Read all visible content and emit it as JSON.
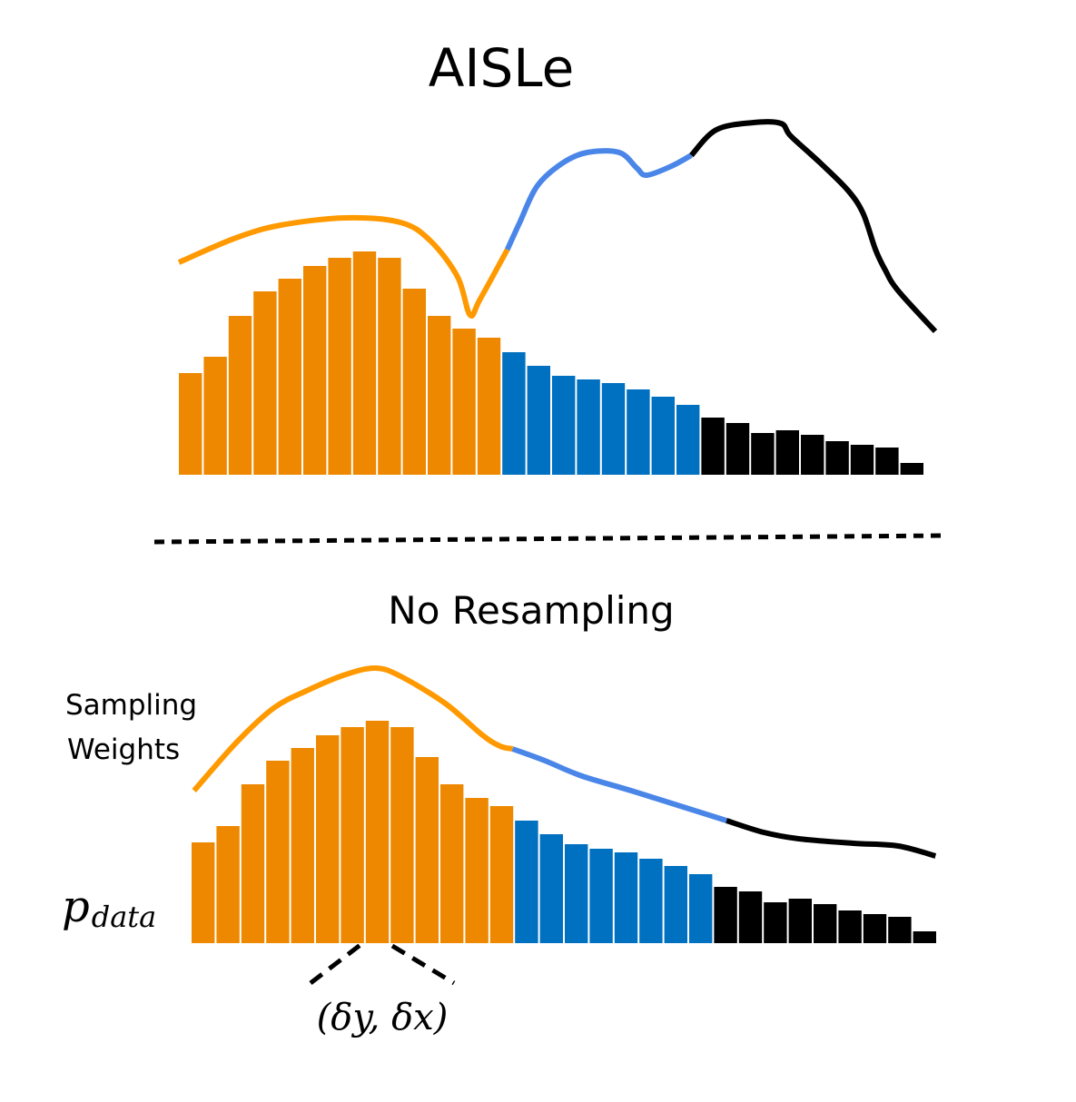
{
  "chart_data": [
    {
      "type": "bar",
      "title": "AISLe",
      "xlabel": "",
      "ylabel": "",
      "grid": false,
      "legend": "none",
      "colors": {
        "orange": "#ED8800",
        "blue": "#0070C0",
        "black": "#000000",
        "curve_orange": "#FF9900",
        "curve_blue": "#4A86E8",
        "curve_black": "#000000"
      },
      "segments": [
        {
          "name": "orange",
          "values": [
            112,
            130,
            175,
            202,
            216,
            230,
            239,
            246,
            239,
            205,
            175,
            161,
            151
          ]
        },
        {
          "name": "blue",
          "values": [
            135,
            120,
            109,
            105,
            101,
            94,
            86,
            77
          ]
        },
        {
          "name": "black",
          "values": [
            63,
            57,
            46,
            49,
            44,
            37,
            33,
            30,
            13
          ]
        }
      ],
      "curve": {
        "label": "sampling weights",
        "segments": [
          {
            "name": "orange",
            "points": [
              [
                0,
                234
              ],
              [
                2.3,
                261
              ],
              [
                4.1,
                275
              ],
              [
                6.7,
                283
              ],
              [
                8.9,
                278
              ],
              [
                10.1,
                258
              ],
              [
                11.2,
                218
              ],
              [
                11.7,
                176
              ],
              [
                12.1,
                193
              ],
              [
                13.2,
                248
              ]
            ]
          },
          {
            "name": "blue",
            "points": [
              [
                13.2,
                248
              ],
              [
                13.7,
                278
              ],
              [
                14.4,
                318
              ],
              [
                15.4,
                343
              ],
              [
                16.4,
                355
              ],
              [
                17.7,
                355
              ],
              [
                18.4,
                338
              ],
              [
                18.8,
                330
              ],
              [
                19.8,
                340
              ],
              [
                20.6,
                352
              ]
            ]
          },
          {
            "name": "black",
            "points": [
              [
                20.6,
                352
              ],
              [
                21.6,
                380
              ],
              [
                23.1,
                388
              ],
              [
                24.2,
                387
              ],
              [
                24.6,
                373
              ],
              [
                25.8,
                343
              ],
              [
                26.9,
                313
              ],
              [
                27.5,
                288
              ],
              [
                28.0,
                248
              ],
              [
                28.4,
                225
              ],
              [
                28.9,
                203
              ],
              [
                30.4,
                158
              ]
            ]
          }
        ]
      }
    },
    {
      "type": "bar",
      "title": "No Resampling",
      "xlabel": "",
      "ylabel": "p_data",
      "grid": false,
      "legend": "none",
      "segments": [
        {
          "name": "orange",
          "values": [
            111,
            129,
            175,
            201,
            215,
            229,
            238,
            245,
            238,
            205,
            175,
            160,
            151
          ]
        },
        {
          "name": "blue",
          "values": [
            135,
            120,
            109,
            104,
            100,
            93,
            85,
            76
          ]
        },
        {
          "name": "black",
          "values": [
            62,
            57,
            45,
            49,
            43,
            36,
            32,
            29,
            13
          ]
        }
      ],
      "curve": {
        "label": "Sampling Weights",
        "segments": [
          {
            "name": "orange",
            "points": [
              [
                0.1,
                168
              ],
              [
                1.8,
                221
              ],
              [
                3.3,
                259
              ],
              [
                4.7,
                279
              ],
              [
                6.2,
                296
              ],
              [
                7.4,
                303
              ],
              [
                8.4,
                294
              ],
              [
                10.2,
                264
              ],
              [
                11.7,
                229
              ],
              [
                12.4,
                217
              ],
              [
                12.9,
                214
              ]
            ]
          },
          {
            "name": "blue",
            "points": [
              [
                12.9,
                214
              ],
              [
                14.2,
                201
              ],
              [
                15.7,
                184
              ],
              [
                17.9,
                166
              ],
              [
                21.5,
                135
              ]
            ]
          },
          {
            "name": "black",
            "points": [
              [
                21.5,
                135
              ],
              [
                23.0,
                122
              ],
              [
                24.4,
                115
              ],
              [
                26.6,
                110
              ],
              [
                28.4,
                107
              ],
              [
                29.9,
                96
              ]
            ]
          }
        ]
      },
      "annotation": "(δy, δx)"
    }
  ],
  "labels": {
    "top_title": "AISLe",
    "bottom_title": "No Resampling",
    "weights_label_line1": "Sampling",
    "weights_label_line2": "Weights",
    "pdata_main": "p",
    "pdata_sub": "data",
    "delta_annotation": "(δy, δx)"
  }
}
